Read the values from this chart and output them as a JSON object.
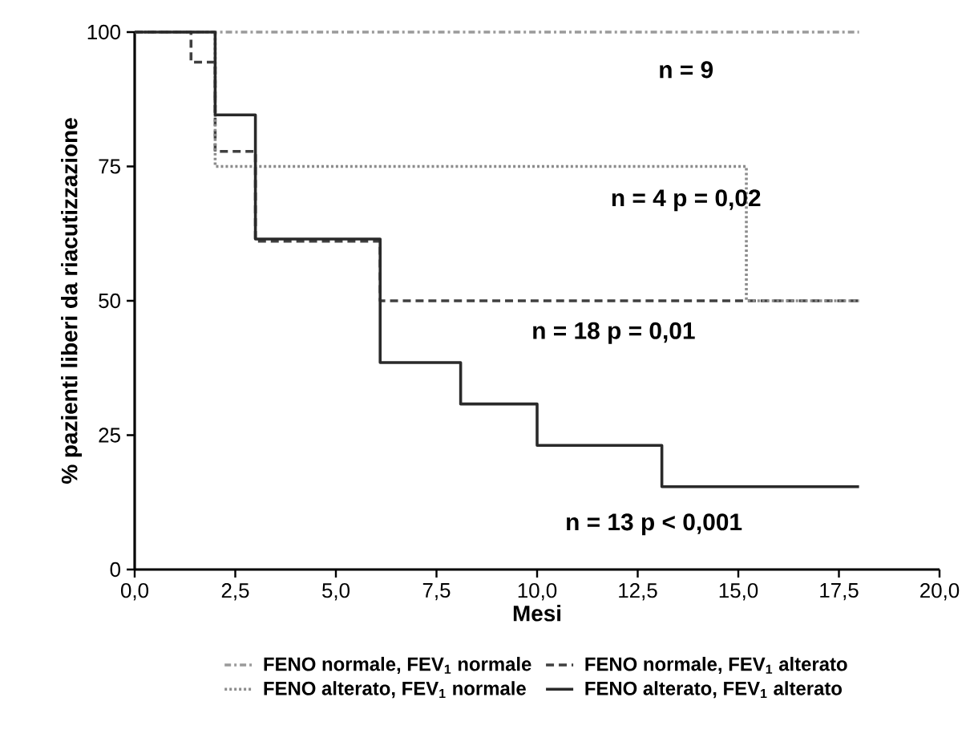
{
  "chart_data": {
    "type": "step",
    "xlabel": "Mesi",
    "ylabel": "% pazienti liberi da riacutizzazione",
    "xlim": [
      0,
      20
    ],
    "ylim": [
      0,
      100
    ],
    "xticks": [
      {
        "value": 0,
        "label": "0,0"
      },
      {
        "value": 2.5,
        "label": "2,5"
      },
      {
        "value": 5,
        "label": "5,0"
      },
      {
        "value": 7.5,
        "label": "7,5"
      },
      {
        "value": 10,
        "label": "10,0"
      },
      {
        "value": 12.5,
        "label": "12,5"
      },
      {
        "value": 15,
        "label": "15,0"
      },
      {
        "value": 17.5,
        "label": "17,5"
      },
      {
        "value": 20,
        "label": "20,0"
      }
    ],
    "yticks": [
      0,
      25,
      50,
      75,
      100
    ],
    "grid": false,
    "legend": "bottom",
    "marker": "none",
    "series": [
      {
        "name": "FENO normale, FEV$_{1}$ normale",
        "color": "#9a9a9a",
        "line_style": "dashdot",
        "x": [
          0,
          18
        ],
        "values": [
          100,
          100
        ]
      },
      {
        "name": "FENO normale, FEV$_{1}$ alterato",
        "color": "#404040",
        "line_style": "dashed",
        "x": [
          0,
          1.4,
          2.0,
          3.0,
          6.1,
          18
        ],
        "values": [
          100,
          94.4,
          77.8,
          61.1,
          50,
          50
        ]
      },
      {
        "name": "FENO alterato, FEV$_{1}$ normale",
        "color": "#8c8c8c",
        "line_style": "dotted",
        "x": [
          0,
          2.0,
          15.2,
          18
        ],
        "values": [
          100,
          75,
          50,
          50
        ]
      },
      {
        "name": "FENO alterato, FEV$_{1}$ alterato",
        "color": "#2a2a2a",
        "line_style": "solid",
        "x": [
          0,
          2.0,
          3.0,
          6.1,
          8.1,
          10.0,
          13.1,
          18
        ],
        "values": [
          100,
          84.6,
          61.5,
          38.5,
          30.8,
          23.1,
          15.4,
          15.4
        ]
      }
    ],
    "annotations": [
      "n = 9",
      "n = 4 p = 0,02",
      "n = 18 p = 0,01",
      "n = 13 p < 0,001"
    ]
  }
}
